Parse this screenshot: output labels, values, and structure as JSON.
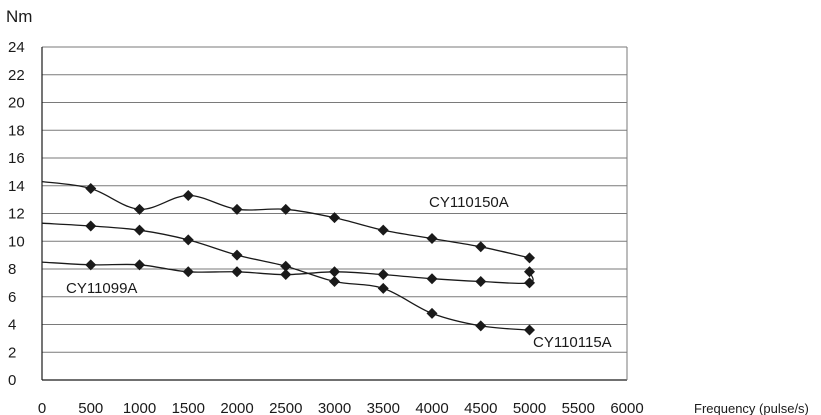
{
  "chart_data": {
    "type": "line",
    "ylabel": "Nm",
    "xlabel": "Frequency (pulse/s)",
    "xlim": [
      0,
      6000
    ],
    "ylim": [
      0,
      24
    ],
    "x_ticks": [
      0,
      500,
      1000,
      1500,
      2000,
      2500,
      3000,
      3500,
      4000,
      4500,
      5000,
      5500,
      6000
    ],
    "y_ticks": [
      0,
      2,
      4,
      6,
      8,
      10,
      12,
      14,
      16,
      18,
      20,
      22,
      24
    ],
    "grid": "horizontal",
    "line_color": "#1a1a1a",
    "marker": "diamond",
    "series": [
      {
        "name": "CY110150A",
        "x": [
          0,
          500,
          1000,
          1500,
          2000,
          2500,
          3000,
          3500,
          4000,
          4500,
          5000
        ],
        "y": [
          14.3,
          13.8,
          12.3,
          13.3,
          12.3,
          12.3,
          11.7,
          10.8,
          10.2,
          9.6,
          8.8
        ]
      },
      {
        "name": "CY110115A",
        "x": [
          0,
          500,
          1000,
          1500,
          2000,
          2500,
          3000,
          3500,
          4000,
          4500,
          5000
        ],
        "y": [
          11.3,
          11.1,
          10.8,
          10.1,
          9.0,
          8.2,
          7.1,
          6.6,
          4.8,
          3.9,
          3.6
        ]
      },
      {
        "name": "CY11099A",
        "x": [
          0,
          500,
          1000,
          1500,
          2000,
          2500,
          3000,
          3500,
          4000,
          4500,
          5000,
          5000
        ],
        "y": [
          8.5,
          8.3,
          8.3,
          7.8,
          7.8,
          7.6,
          7.8,
          7.6,
          7.3,
          7.1,
          7.0,
          7.8
        ]
      }
    ]
  }
}
